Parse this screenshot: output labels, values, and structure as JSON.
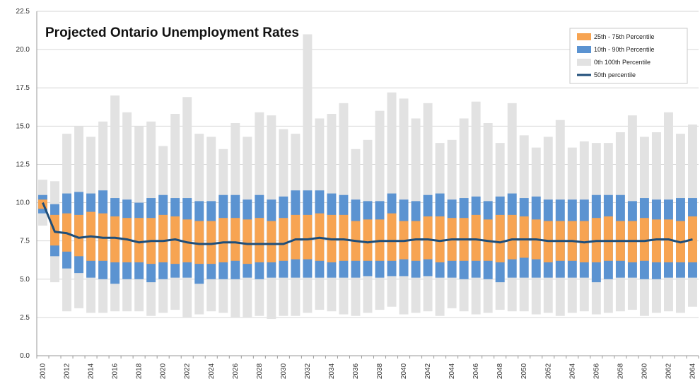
{
  "chart_data": {
    "type": "bar",
    "title": "Projected Ontario Unemployment Rates",
    "xlabel": "",
    "ylabel": "",
    "ylim": [
      0,
      22.5
    ],
    "yticks": [
      "0.0",
      "2.5",
      "5.0",
      "7.5",
      "10.0",
      "12.5",
      "15.0",
      "17.5",
      "20.0",
      "22.5"
    ],
    "grid": "horizontal",
    "legend_position": "top-right",
    "x_tick_labels": [
      "2010",
      "2012",
      "2014",
      "2016",
      "2018",
      "2020",
      "2022",
      "2024",
      "2026",
      "2028",
      "2030",
      "2032",
      "2034",
      "2036",
      "2038",
      "2040",
      "2042",
      "2044",
      "2046",
      "2048",
      "2050",
      "2052",
      "2054",
      "2056",
      "2058",
      "2060",
      "2062",
      "2064"
    ],
    "years": [
      2010,
      2011,
      2012,
      2013,
      2014,
      2015,
      2016,
      2017,
      2018,
      2019,
      2020,
      2021,
      2022,
      2023,
      2024,
      2025,
      2026,
      2027,
      2028,
      2029,
      2030,
      2031,
      2032,
      2033,
      2034,
      2035,
      2036,
      2037,
      2038,
      2039,
      2040,
      2041,
      2042,
      2043,
      2044,
      2045,
      2046,
      2047,
      2048,
      2049,
      2050,
      2051,
      2052,
      2053,
      2054,
      2055,
      2056,
      2057,
      2058,
      2059,
      2060,
      2061,
      2062,
      2063,
      2064
    ],
    "legend": [
      {
        "label": "25th - 75th Percentile",
        "color": "#f7a452",
        "kind": "box"
      },
      {
        "label": "10th - 90th Percentile",
        "color": "#5b93d1",
        "kind": "box"
      },
      {
        "label": "0th   100th Percentile",
        "color": "#e2e2e2",
        "kind": "box"
      },
      {
        "label": "50th percentile",
        "color": "#1f4e79",
        "kind": "line"
      }
    ],
    "series": [
      {
        "name": "0th   100th Percentile",
        "color": "#e2e2e2",
        "low": [
          8.5,
          4.8,
          2.9,
          3.1,
          2.8,
          2.8,
          2.9,
          2.9,
          2.9,
          2.6,
          2.8,
          3.0,
          2.5,
          2.7,
          2.9,
          2.8,
          2.5,
          2.5,
          2.6,
          2.4,
          2.6,
          2.6,
          2.8,
          3.0,
          2.9,
          2.7,
          2.6,
          2.8,
          3.0,
          3.2,
          2.7,
          2.8,
          2.9,
          2.6,
          3.1,
          2.9,
          2.7,
          2.8,
          3.0,
          2.9,
          2.9,
          2.7,
          2.8,
          2.6,
          2.8,
          2.9,
          2.7,
          2.8,
          2.9,
          3.0,
          2.6,
          2.8,
          2.9,
          2.8,
          3.2
        ],
        "high": [
          11.5,
          11.4,
          14.5,
          15.0,
          14.3,
          15.3,
          17.0,
          15.9,
          15.0,
          15.3,
          13.7,
          15.8,
          16.9,
          14.5,
          14.3,
          13.5,
          15.2,
          14.3,
          15.9,
          15.7,
          14.8,
          14.5,
          21.0,
          15.5,
          15.8,
          16.5,
          13.5,
          14.1,
          16.0,
          17.2,
          16.8,
          15.5,
          16.5,
          13.9,
          14.1,
          15.5,
          16.6,
          15.2,
          13.9,
          16.5,
          14.4,
          13.6,
          14.3,
          15.4,
          13.6,
          14.0,
          13.9,
          13.9,
          14.6,
          15.7,
          14.3,
          14.6,
          15.9,
          14.5,
          15.1
        ]
      },
      {
        "name": "10th - 90th Percentile",
        "color": "#5b93d1",
        "low": [
          9.3,
          6.5,
          5.7,
          5.4,
          5.1,
          5.0,
          4.7,
          5.0,
          5.0,
          4.8,
          5.0,
          5.1,
          5.1,
          4.7,
          5.0,
          5.0,
          5.0,
          5.1,
          5.0,
          5.1,
          5.1,
          5.1,
          5.1,
          5.1,
          5.1,
          5.1,
          5.1,
          5.2,
          5.1,
          5.2,
          5.2,
          5.1,
          5.2,
          5.1,
          5.1,
          5.0,
          5.1,
          5.0,
          4.8,
          5.1,
          5.1,
          5.1,
          5.1,
          5.1,
          5.1,
          5.1,
          4.8,
          5.0,
          5.1,
          5.1,
          5.0,
          5.0,
          5.1,
          5.1,
          5.1
        ],
        "high": [
          10.5,
          9.9,
          10.6,
          10.7,
          10.6,
          10.8,
          10.3,
          10.2,
          10.0,
          10.3,
          10.5,
          10.3,
          10.3,
          10.1,
          10.1,
          10.5,
          10.5,
          10.2,
          10.5,
          10.2,
          10.4,
          10.8,
          10.8,
          10.8,
          10.6,
          10.5,
          10.2,
          10.1,
          10.1,
          10.6,
          10.2,
          10.1,
          10.5,
          10.6,
          10.2,
          10.3,
          10.4,
          10.1,
          10.4,
          10.6,
          10.3,
          10.4,
          10.2,
          10.2,
          10.2,
          10.2,
          10.5,
          10.5,
          10.5,
          10.1,
          10.3,
          10.2,
          10.2,
          10.3,
          10.3
        ]
      },
      {
        "name": "25th - 75th Percentile",
        "color": "#f7a452",
        "low": [
          9.6,
          7.2,
          6.8,
          6.5,
          6.2,
          6.2,
          6.1,
          6.1,
          6.1,
          6.0,
          6.1,
          6.0,
          6.1,
          6.0,
          6.0,
          6.1,
          6.2,
          6.0,
          6.1,
          6.1,
          6.2,
          6.3,
          6.3,
          6.2,
          6.1,
          6.2,
          6.2,
          6.2,
          6.2,
          6.2,
          6.3,
          6.2,
          6.3,
          6.1,
          6.2,
          6.2,
          6.2,
          6.2,
          6.1,
          6.3,
          6.4,
          6.3,
          6.1,
          6.2,
          6.2,
          6.1,
          6.1,
          6.2,
          6.2,
          6.1,
          6.2,
          6.1,
          6.1,
          6.1,
          6.1
        ],
        "high": [
          10.2,
          9.2,
          9.3,
          9.2,
          9.4,
          9.3,
          9.1,
          9.0,
          9.0,
          9.0,
          9.2,
          9.1,
          8.9,
          8.8,
          8.8,
          9.0,
          9.0,
          8.9,
          9.0,
          8.8,
          9.0,
          9.2,
          9.2,
          9.3,
          9.2,
          9.2,
          8.8,
          8.9,
          8.9,
          9.3,
          8.8,
          8.8,
          9.1,
          9.1,
          9.0,
          9.0,
          9.2,
          8.9,
          9.2,
          9.2,
          9.1,
          8.9,
          8.8,
          8.8,
          8.8,
          8.8,
          9.0,
          9.1,
          8.8,
          8.8,
          9.0,
          8.9,
          8.9,
          8.8,
          9.1
        ]
      },
      {
        "name": "50th percentile",
        "color": "#1f4e79",
        "values": [
          10.0,
          8.1,
          8.0,
          7.7,
          7.8,
          7.7,
          7.7,
          7.6,
          7.4,
          7.5,
          7.5,
          7.6,
          7.4,
          7.3,
          7.3,
          7.4,
          7.4,
          7.3,
          7.3,
          7.3,
          7.3,
          7.6,
          7.6,
          7.7,
          7.6,
          7.6,
          7.5,
          7.4,
          7.5,
          7.5,
          7.5,
          7.6,
          7.6,
          7.5,
          7.6,
          7.6,
          7.6,
          7.5,
          7.4,
          7.6,
          7.6,
          7.6,
          7.5,
          7.5,
          7.5,
          7.4,
          7.5,
          7.5,
          7.5,
          7.5,
          7.5,
          7.6,
          7.6,
          7.4,
          7.6
        ]
      }
    ]
  }
}
